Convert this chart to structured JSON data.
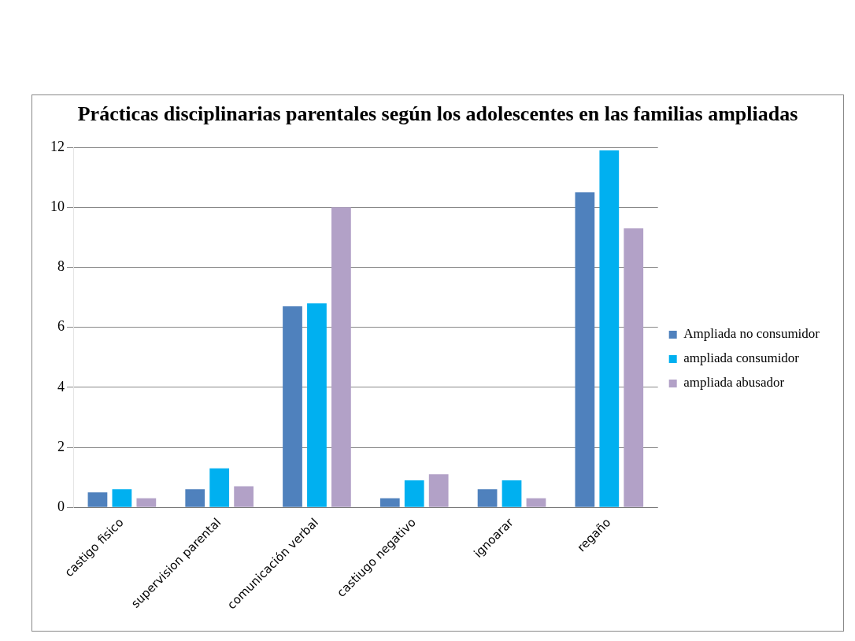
{
  "chart_data": {
    "type": "bar",
    "title": "Prácticas disciplinarias parentales según los adolescentes en las familias ampliadas",
    "categories": [
      "castigo fisico",
      "supervision parental",
      "comunicación verbal",
      "castiugo negativo",
      "ignoarar",
      "regaño"
    ],
    "series": [
      {
        "name": "Ampliada no consumidor",
        "color": "#4f81bd",
        "values": [
          0.5,
          0.6,
          6.7,
          0.3,
          0.6,
          10.5
        ]
      },
      {
        "name": "ampliada consumidor",
        "color": "#00b0f0",
        "values": [
          0.6,
          1.3,
          6.8,
          0.9,
          0.9,
          11.9
        ]
      },
      {
        "name": "ampliada abusador",
        "color": "#b2a1c7",
        "values": [
          0.3,
          0.7,
          10,
          1.1,
          0.3,
          9.3
        ]
      }
    ],
    "ylim": [
      0,
      12
    ],
    "yticks": [
      0,
      2,
      4,
      6,
      8,
      10,
      12
    ],
    "grid": "y",
    "legend": "right"
  }
}
